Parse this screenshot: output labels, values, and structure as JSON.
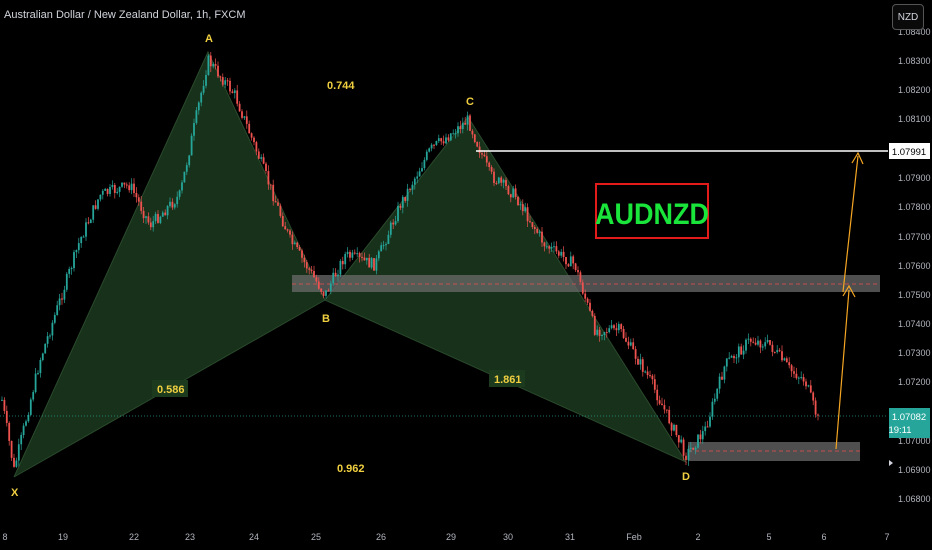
{
  "header": {
    "symbol_title": "Australian Dollar / New Zealand Dollar, 1h, FXCM",
    "currency_button": "NZD"
  },
  "colors": {
    "background": "#000000",
    "up_candle": "#26a69a",
    "down_candle": "#ef5350",
    "pattern_fill": "#1c3a1e",
    "zone_fill": "#5d5d5d",
    "label_yellow": "#f0d040",
    "projection_line": "#f5a623",
    "box_border": "#e31b1b",
    "box_text": "#19e53b"
  },
  "chart_data": {
    "type": "candlestick",
    "title": "AUDNZD",
    "y_axis": {
      "ticks": [
        "1.08400",
        "1.08300",
        "1.08200",
        "1.08100",
        "1.07900",
        "1.07800",
        "1.07700",
        "1.07600",
        "1.07500",
        "1.07400",
        "1.07300",
        "1.07200",
        "1.07000",
        "1.06900",
        "1.06800"
      ],
      "ylim": [
        1.0675,
        1.0845
      ],
      "last_price": "1.07082",
      "countdown": "19:11",
      "target_price": "1.07991"
    },
    "x_axis": {
      "ticks": [
        "8",
        "19",
        "22",
        "23",
        "24",
        "25",
        "26",
        "29",
        "30",
        "31",
        "Feb",
        "2",
        "5",
        "6",
        "7"
      ]
    },
    "harmonic_pattern": {
      "points": [
        {
          "label": "X",
          "price": 1.0688
        },
        {
          "label": "A",
          "price": 1.0834
        },
        {
          "label": "B",
          "price": 1.0748
        },
        {
          "label": "C",
          "price": 1.0811
        },
        {
          "label": "D",
          "price": 1.0694
        }
      ],
      "ratios": [
        {
          "label": "XB",
          "value": "0.586"
        },
        {
          "label": "AC",
          "value": "0.744"
        },
        {
          "label": "BD",
          "value": "1.861"
        },
        {
          "label": "XD",
          "value": "0.962"
        }
      ]
    },
    "zones": [
      {
        "name": "resistance-support-zone",
        "from": 1.0752,
        "to": 1.0757
      },
      {
        "name": "demand-zone",
        "from": 1.0694,
        "to": 1.0699
      }
    ],
    "target_line_price": 1.07991,
    "current_price": 1.07082
  }
}
